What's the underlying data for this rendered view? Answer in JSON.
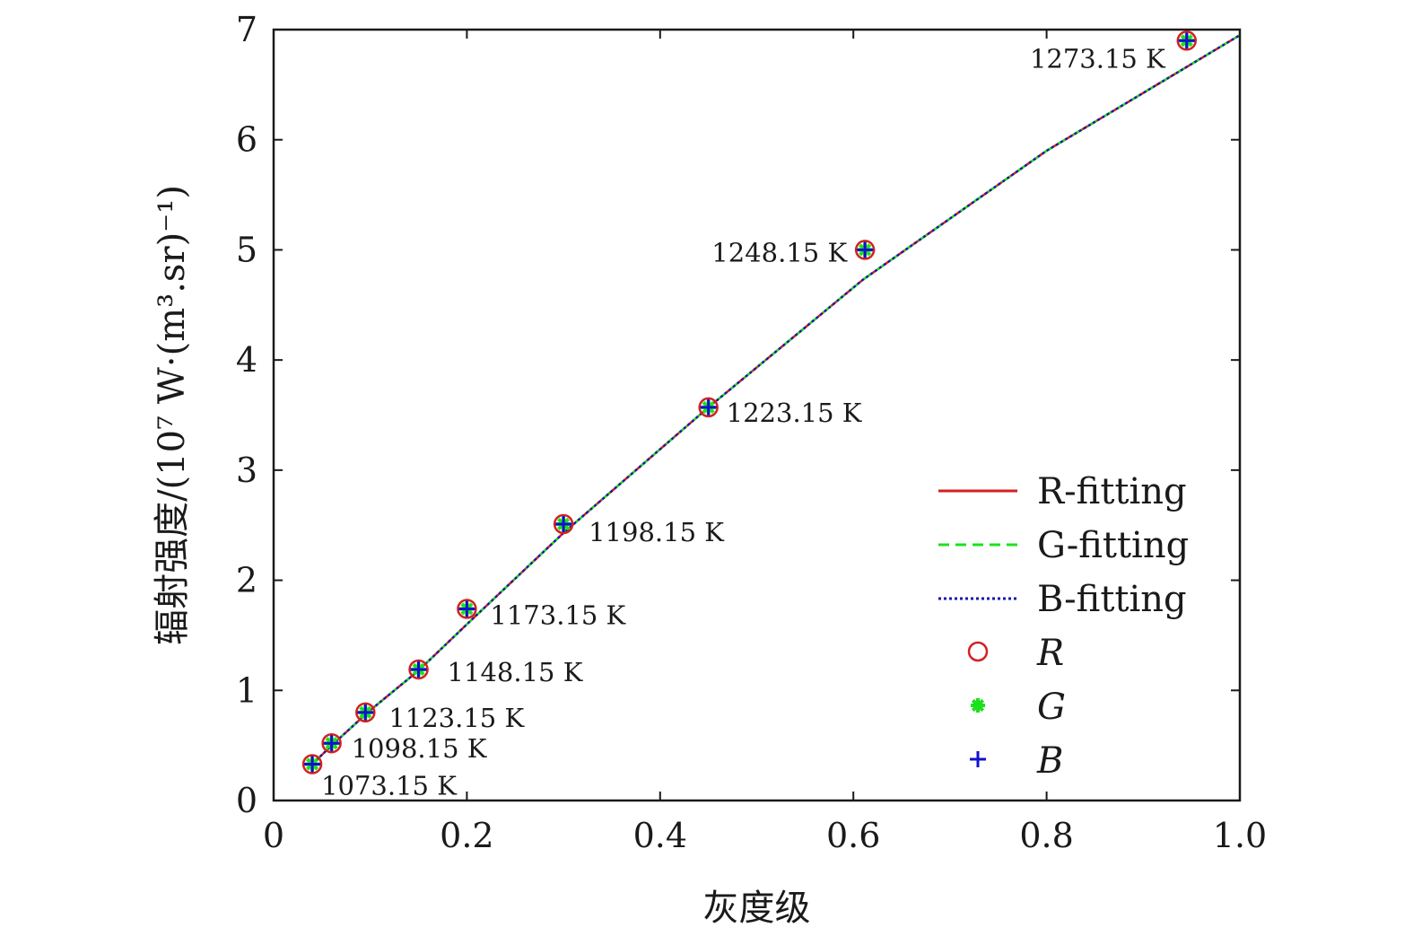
{
  "chart_data": {
    "type": "line",
    "title": "",
    "xlabel": "灰度级",
    "ylabel": "辐射强度/(10⁷ W·(m³.sr)⁻¹)",
    "xlim": [
      0,
      1.0
    ],
    "ylim": [
      0,
      7
    ],
    "x_ticks": [
      "0",
      "0.2",
      "0.4",
      "0.6",
      "0.8",
      "1.0"
    ],
    "y_ticks": [
      "0",
      "1",
      "2",
      "3",
      "4",
      "5",
      "6",
      "7"
    ],
    "grid": false,
    "legend_position": "lower-right",
    "series": [
      {
        "name": "R-fitting",
        "style": "solid",
        "color": "#d42020",
        "x": [
          0.04,
          0.06,
          0.1,
          0.15,
          0.2,
          0.3,
          0.45,
          0.61,
          0.8,
          1.0
        ],
        "y": [
          0.33,
          0.5,
          0.82,
          1.18,
          1.6,
          2.43,
          3.57,
          4.73,
          5.9,
          6.95
        ]
      },
      {
        "name": "G-fitting",
        "style": "dashed",
        "color": "#1ee01e",
        "x": [
          0.04,
          0.06,
          0.1,
          0.15,
          0.2,
          0.3,
          0.45,
          0.61,
          0.8,
          1.0
        ],
        "y": [
          0.33,
          0.5,
          0.82,
          1.18,
          1.6,
          2.43,
          3.57,
          4.73,
          5.9,
          6.95
        ]
      },
      {
        "name": "B-fitting",
        "style": "dotted",
        "color": "#1a1aa8",
        "x": [
          0.04,
          0.06,
          0.1,
          0.15,
          0.2,
          0.3,
          0.45,
          0.61,
          0.8,
          1.0
        ],
        "y": [
          0.33,
          0.5,
          0.82,
          1.18,
          1.6,
          2.43,
          3.57,
          4.73,
          5.9,
          6.95
        ]
      }
    ],
    "markers": [
      {
        "name": "R",
        "symbol": "circle",
        "color": "#d42020"
      },
      {
        "name": "G",
        "symbol": "asterisk",
        "color": "#1ee01e"
      },
      {
        "name": "B",
        "symbol": "plus",
        "color": "#1010d0"
      }
    ],
    "points": [
      {
        "x": 0.04,
        "y": 0.33,
        "label": "1073.15 K"
      },
      {
        "x": 0.06,
        "y": 0.52,
        "label": "1098.15 K"
      },
      {
        "x": 0.095,
        "y": 0.8,
        "label": "1123.15 K"
      },
      {
        "x": 0.15,
        "y": 1.19,
        "label": "1148.15 K"
      },
      {
        "x": 0.2,
        "y": 1.74,
        "label": "1173.15 K"
      },
      {
        "x": 0.3,
        "y": 2.51,
        "label": "1198.15 K"
      },
      {
        "x": 0.45,
        "y": 3.57,
        "label": "1223.15 K"
      },
      {
        "x": 0.612,
        "y": 5.0,
        "label": "1248.15 K"
      },
      {
        "x": 0.945,
        "y": 6.9,
        "label": "1273.15 K"
      }
    ]
  }
}
